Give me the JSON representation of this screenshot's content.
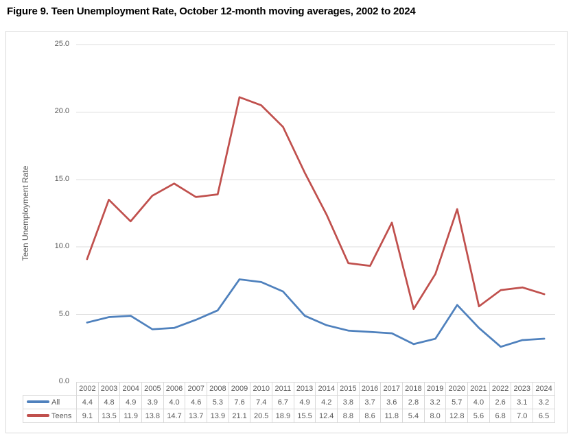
{
  "figure_title": "Figure 9. Teen Unemployment Rate, October 12-month moving averages, 2002 to 2024",
  "chart_data": {
    "type": "line",
    "title": "Figure 9. Teen Unemployment Rate, October 12-month moving averages, 2002 to 2024",
    "xlabel": "",
    "ylabel": "Teen Unemployment Rate",
    "ylim": [
      0,
      25
    ],
    "grid": "horizontal",
    "legend_position": "data-table-left",
    "yticks": [
      {
        "v": 0,
        "label": "0.0"
      },
      {
        "v": 5,
        "label": "5.0"
      },
      {
        "v": 10,
        "label": "10.0"
      },
      {
        "v": 15,
        "label": "15.0"
      },
      {
        "v": 20,
        "label": "20.0"
      },
      {
        "v": 25,
        "label": "25.0"
      }
    ],
    "categories": [
      "2002",
      "2003",
      "2004",
      "2005",
      "2006",
      "2007",
      "2008",
      "2009",
      "2010",
      "2011",
      "2013",
      "2014",
      "2015",
      "2016",
      "2017",
      "2018",
      "2019",
      "2020",
      "2021",
      "2022",
      "2023",
      "2024"
    ],
    "series": [
      {
        "name": "All",
        "color": "#4F81BD",
        "values": [
          "4.4",
          "4.8",
          "4.9",
          "3.9",
          "4.0",
          "4.6",
          "5.3",
          "7.6",
          "7.4",
          "6.7",
          "4.9",
          "4.2",
          "3.8",
          "3.7",
          "3.6",
          "2.8",
          "3.2",
          "5.7",
          "4.0",
          "2.6",
          "3.1",
          "3.2"
        ]
      },
      {
        "name": "Teens",
        "color": "#C0504D",
        "values": [
          "9.1",
          "13.5",
          "11.9",
          "13.8",
          "14.7",
          "13.7",
          "13.9",
          "21.1",
          "20.5",
          "18.9",
          "15.5",
          "12.4",
          "8.8",
          "8.6",
          "11.8",
          "5.4",
          "8.0",
          "12.8",
          "5.6",
          "6.8",
          "7.0",
          "6.5"
        ]
      }
    ]
  },
  "colors": {
    "series_all": "#4F81BD",
    "series_teens": "#C0504D",
    "gridline": "#DCDCDC",
    "chart_border": "#D9D9D9",
    "table_border": "#D9D9D9",
    "axis_text": "#595959",
    "title_text": "#000000"
  }
}
